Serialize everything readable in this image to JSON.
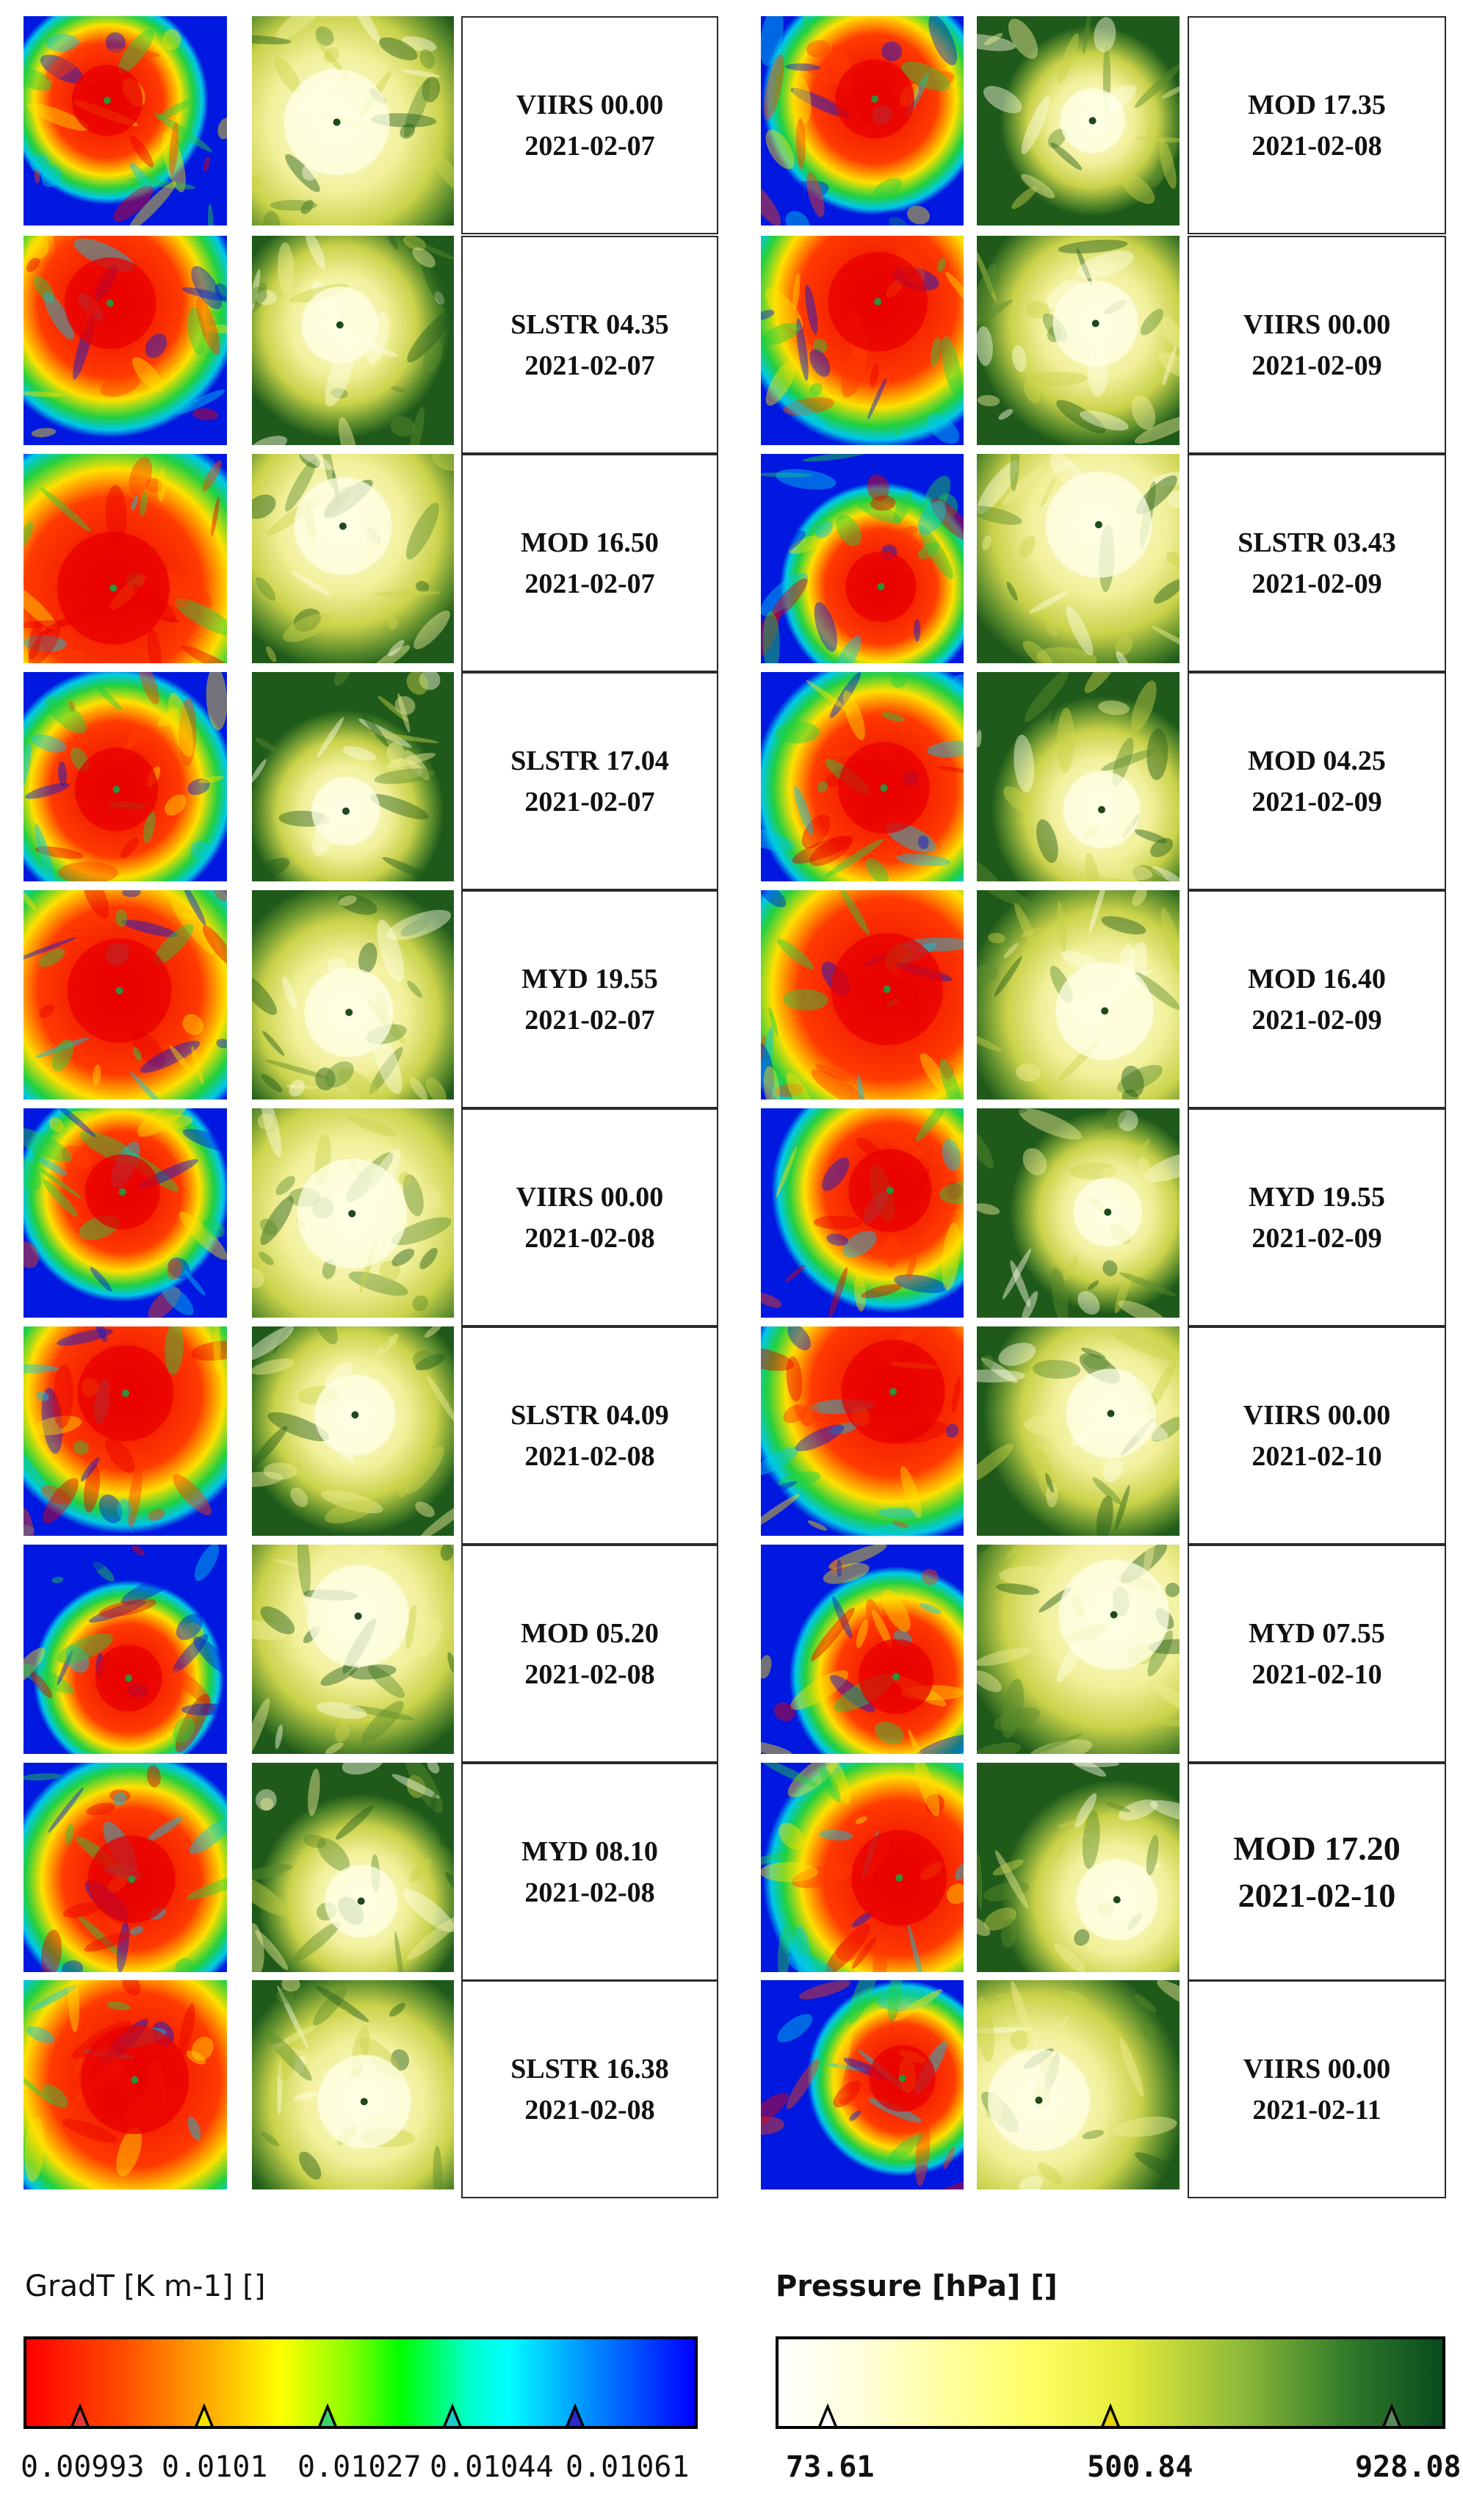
{
  "panels": {
    "left": [
      {
        "label_line1": "VIIRS 00.00",
        "label_line2": "2021-02-07"
      },
      {
        "label_line1": "SLSTR 04.35",
        "label_line2": "2021-02-07"
      },
      {
        "label_line1": "MOD 16.50",
        "label_line2": "2021-02-07"
      },
      {
        "label_line1": "SLSTR 17.04",
        "label_line2": "2021-02-07"
      },
      {
        "label_line1": "MYD 19.55",
        "label_line2": "2021-02-07"
      },
      {
        "label_line1": "VIIRS 00.00",
        "label_line2": "2021-02-08"
      },
      {
        "label_line1": "SLSTR 04.09",
        "label_line2": "2021-02-08"
      },
      {
        "label_line1": "MOD 05.20",
        "label_line2": "2021-02-08"
      },
      {
        "label_line1": "MYD 08.10",
        "label_line2": "2021-02-08"
      },
      {
        "label_line1": "SLSTR 16.38",
        "label_line2": "2021-02-08"
      }
    ],
    "right": [
      {
        "label_line1": "MOD 17.35",
        "label_line2": "2021-02-08"
      },
      {
        "label_line1": "VIIRS 00.00",
        "label_line2": "2021-02-09"
      },
      {
        "label_line1": "SLSTR 03.43",
        "label_line2": "2021-02-09"
      },
      {
        "label_line1": "MOD 04.25",
        "label_line2": "2021-02-09"
      },
      {
        "label_line1": "MOD 16.40",
        "label_line2": "2021-02-09"
      },
      {
        "label_line1": "MYD 19.55",
        "label_line2": "2021-02-09"
      },
      {
        "label_line1": "VIIRS 00.00",
        "label_line2": "2021-02-10"
      },
      {
        "label_line1": "MYD 07.55",
        "label_line2": "2021-02-10"
      },
      {
        "label_line1": "MOD 17.20",
        "label_line2": "2021-02-10"
      },
      {
        "label_line1": "VIIRS 00.00",
        "label_line2": "2021-02-11"
      }
    ]
  },
  "colorbars": {
    "gradt": {
      "title": "GradT  [K m-1] []",
      "ticks": [
        "0.00993",
        "0.0101",
        "0.01027",
        "0.01044",
        "0.01061"
      ],
      "colors": [
        "#ff0000",
        "#ff8800",
        "#ffff00",
        "#00ff00",
        "#00ffff",
        "#0000ff"
      ],
      "marker_colors": [
        "#e53a3a",
        "#f2e600",
        "#3ed46a",
        "#1ec9c9",
        "#2a2ad0"
      ]
    },
    "pressure": {
      "title": "Pressure [hPa] []",
      "ticks": [
        "73.61",
        "500.84",
        "928.08"
      ],
      "colors": [
        "#ffffff",
        "#ffff55",
        "#0a4a1e"
      ],
      "marker_colors": [
        "#ffffff",
        "#e8d400",
        "#5a8a5a"
      ]
    }
  },
  "palette": {
    "gradient_image": [
      "#e80000",
      "#ff3b00",
      "#ffe000",
      "#22d040",
      "#00c8e8",
      "#0018e0"
    ],
    "pressure_image": [
      "#ffffe6",
      "#f2f09a",
      "#c9d24a",
      "#5c8c2c",
      "#1f5a1a"
    ]
  }
}
